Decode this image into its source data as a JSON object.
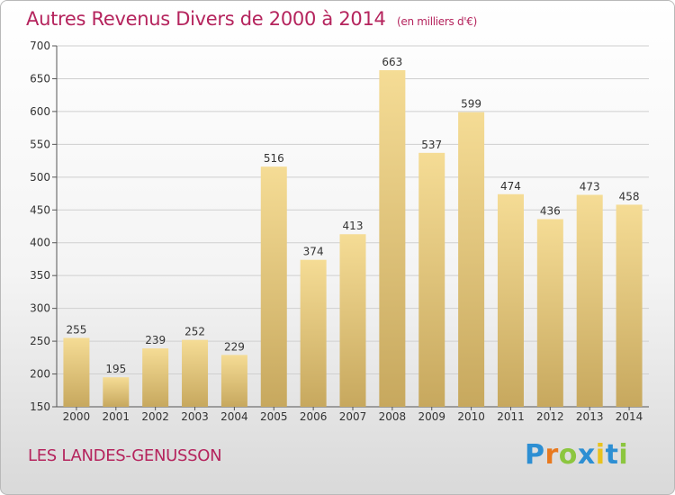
{
  "title": "Autres Revenus Divers de 2000 à 2014",
  "unit": "(en milliers d'€)",
  "commune": "LES LANDES-GENUSSON",
  "logo": {
    "text": "Proxiti",
    "letters": [
      "P",
      "r",
      "o",
      "x",
      "i",
      "t",
      "i"
    ],
    "colors": [
      "#2d8fd3",
      "#e8791e",
      "#8cc63f",
      "#2d8fd3",
      "#e8c21e",
      "#2d8fd3",
      "#8cc63f"
    ]
  },
  "colors": {
    "title": "#b5245d",
    "bar_light": "#f5dc95",
    "bar_dark": "#c7a85e",
    "grid": "#cfcfcf"
  },
  "chart_data": {
    "type": "bar",
    "categories": [
      "2000",
      "2001",
      "2002",
      "2003",
      "2004",
      "2005",
      "2006",
      "2007",
      "2008",
      "2009",
      "2010",
      "2011",
      "2012",
      "2013",
      "2014"
    ],
    "values": [
      255,
      195,
      239,
      252,
      229,
      516,
      374,
      413,
      663,
      537,
      599,
      474,
      436,
      473,
      458
    ],
    "ylim": [
      150,
      700
    ],
    "yticks": [
      150,
      200,
      250,
      300,
      350,
      400,
      450,
      500,
      550,
      600,
      650,
      700
    ],
    "grid": true,
    "legend": "none"
  }
}
